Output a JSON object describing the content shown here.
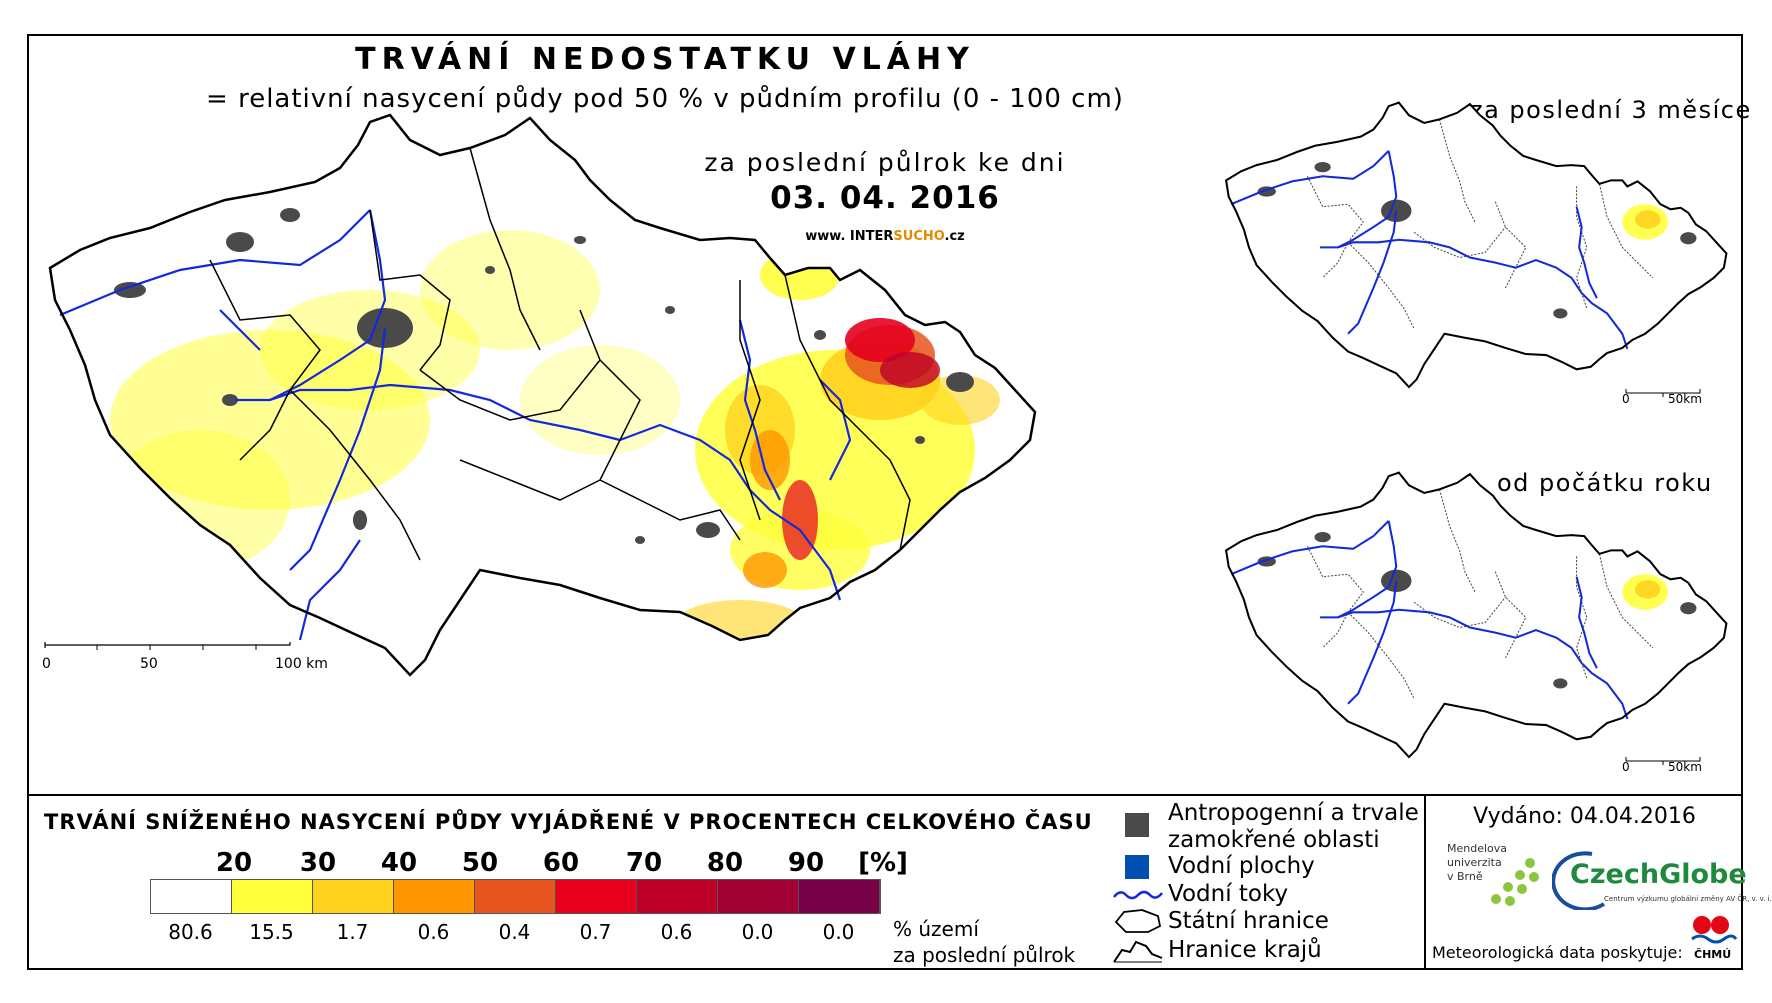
{
  "title": "TRVÁNÍ NEDOSTATKU VLÁHY",
  "subtitle": "= relativní nasycení půdy pod 50 % v půdním profilu (0 - 100 cm)",
  "main_map": {
    "period_label": "za poslední půlrok ke dni",
    "date": "03. 04. 2016",
    "website_prefix": "www. INTER",
    "website_accent": "SUCHO",
    "website_suffix": ".cz",
    "scale": {
      "ticks": [
        "0",
        "50",
        "100 km"
      ]
    }
  },
  "insets": [
    {
      "title": "za poslední 3 měsíce",
      "scale": {
        "ticks": [
          "0",
          "50km"
        ]
      }
    },
    {
      "title": "od počátku roku",
      "scale": {
        "ticks": [
          "0",
          "50km"
        ]
      }
    }
  ],
  "legend": {
    "title": "TRVÁNÍ SNÍŽENÉHO NASYCENÍ PŮDY VYJÁDŘENÉ V PROCENTECH CELKOVÉHO ČASU",
    "class_breaks": [
      "20",
      "30",
      "40",
      "50",
      "60",
      "70",
      "80",
      "90",
      "[%]"
    ],
    "classes": [
      {
        "color": "#ffffff",
        "share": "80.6"
      },
      {
        "color": "#ffff3c",
        "share": "15.5"
      },
      {
        "color": "#ffd21e",
        "share": "1.7"
      },
      {
        "color": "#ff9600",
        "share": "0.6"
      },
      {
        "color": "#e6551e",
        "share": "0.4"
      },
      {
        "color": "#e6001e",
        "share": "0.7"
      },
      {
        "color": "#be0028",
        "share": "0.6"
      },
      {
        "color": "#a00032",
        "share": "0.0"
      },
      {
        "color": "#780046",
        "share": "0.0"
      }
    ],
    "share_label_line1": "% území",
    "share_label_line2": "za poslední půlrok"
  },
  "symbols": {
    "anthropogenic": "Antropogenní a trvale",
    "anthropogenic_2": "zamokřené oblasti",
    "water_bodies": "Vodní plochy",
    "rivers": "Vodní toky",
    "state_border": "Státní hranice",
    "region_border": "Hranice krajů"
  },
  "credits": {
    "issued": "Vydáno: 04.04.2016",
    "mendel_1": "Mendelova",
    "mendel_2": "univerzita",
    "mendel_3": "v Brně",
    "czechglobe": "CzechGlobe",
    "czechglobe_sub": "Centrum výzkumu globální změny AV ČR, v. v. i.",
    "meteo": "Meteorologická data poskytuje:",
    "chmu": "ČHMÚ"
  },
  "colors": {
    "city": "#4a4a4a",
    "water": "#0050b4",
    "river": "#1428dc",
    "border": "#000000"
  }
}
